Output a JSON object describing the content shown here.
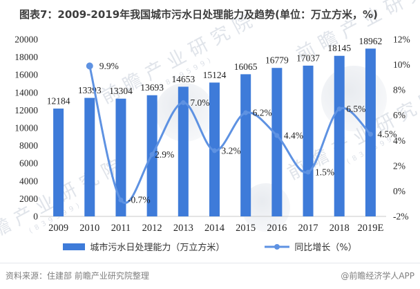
{
  "title": "图表7：2009-2019年我国城市污水日处理能力及趋势(单位：万立方米，%)",
  "chart_data": {
    "type": "bar-line-combo",
    "categories": [
      "2009",
      "2010",
      "2011",
      "2012",
      "2013",
      "2014",
      "2015",
      "2016",
      "2017",
      "2018",
      "2019E"
    ],
    "series": [
      {
        "name": "城市污水日处理能力（万立方米）",
        "type": "bar",
        "axis": "left",
        "color": "#3e7bd9",
        "values": [
          12184,
          13393,
          13304,
          13693,
          14653,
          15124,
          16065,
          16779,
          17037,
          18145,
          18962
        ],
        "value_labels": [
          "12184",
          "13393",
          "13304",
          "13693",
          "14653",
          "15124",
          "16065",
          "16779",
          "17037",
          "18145",
          "18962"
        ]
      },
      {
        "name": "同比增长（%）",
        "type": "line",
        "axis": "right",
        "color": "#5e92e2",
        "values": [
          null,
          9.9,
          -0.7,
          2.9,
          7.0,
          3.2,
          6.2,
          4.4,
          1.5,
          6.5,
          4.5
        ],
        "value_labels": [
          null,
          "9.9%",
          "-0.7%",
          "2.9%",
          "7.0%",
          "3.2%",
          "6.2%",
          "4.4%",
          "1.5%",
          "6.5%",
          "4.5%"
        ]
      }
    ],
    "left_axis": {
      "min": 0,
      "max": 20000,
      "step": 2000,
      "ticks": [
        "20000",
        "18000",
        "16000",
        "14000",
        "12000",
        "10000",
        "8000",
        "6000",
        "4000",
        "2000",
        "0"
      ]
    },
    "right_axis": {
      "min": -2,
      "max": 12,
      "step": 2,
      "ticks": [
        "12%",
        "10%",
        "8%",
        "6%",
        "4%",
        "2%",
        "0%",
        "-2%"
      ]
    },
    "grid": false,
    "legend_position": "bottom"
  },
  "legend": {
    "bar_label": "城市污水日处理能力（万立方米）",
    "line_label": "同比增长（%）"
  },
  "footer": {
    "source": "资料来源：住建部 前瞻产业研究院整理",
    "credit": "@前瞻经济学人APP"
  },
  "watermark": {
    "text": "前瞻产业研究院",
    "subtext": "(839599)"
  },
  "colors": {
    "bar": "#3e7bd9",
    "line": "#5e92e2",
    "axis_text": "#262626",
    "label_text": "#1f1f1f",
    "title_text": "#3d3d3d",
    "axis_line": "#c9c9c9",
    "footer_text": "#7f7f7f"
  }
}
